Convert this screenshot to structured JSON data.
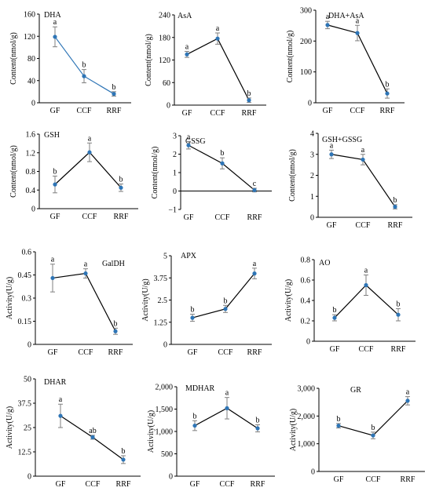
{
  "chart_data": [
    {
      "type": "line",
      "title": "DHA",
      "ylabel": "Content(nmol/g)",
      "categories": [
        "GF",
        "CCF",
        "RRF"
      ],
      "yticks": [
        "0",
        "40",
        "80",
        "120",
        "160"
      ],
      "ylim": [
        0,
        160
      ],
      "values": [
        119,
        48,
        16
      ],
      "errors": [
        18,
        12,
        4
      ],
      "letters": [
        "a",
        "b",
        "b"
      ],
      "line_color": "#2e75b6"
    },
    {
      "type": "line",
      "title": "AsA",
      "ylabel": "Content(nmol/g)",
      "categories": [
        "GF",
        "CCF",
        "RRF"
      ],
      "yticks": [
        "0",
        "60",
        "120",
        "180",
        "240"
      ],
      "ylim": [
        0,
        240
      ],
      "values": [
        135,
        177,
        13
      ],
      "errors": [
        8,
        15,
        6
      ],
      "letters": [
        "a",
        "a",
        "b"
      ],
      "line_color": "#000000"
    },
    {
      "type": "line",
      "title": "DHA+AsA",
      "ylabel": "Content(nmol/g)",
      "categories": [
        "GF",
        "CCF",
        "RRF"
      ],
      "yticks": [
        "0",
        "100",
        "200",
        "300"
      ],
      "ylim": [
        0,
        300
      ],
      "values": [
        252,
        226,
        30
      ],
      "errors": [
        12,
        25,
        15
      ],
      "letters": [
        "a",
        "a",
        "b"
      ],
      "line_color": "#000000"
    },
    {
      "type": "line",
      "title": "GSH",
      "ylabel": "Content(nmol/g)",
      "categories": [
        "GF",
        "CCF",
        "RRF"
      ],
      "yticks": [
        "0",
        "0.4",
        "0.8",
        "1.2",
        "1.6"
      ],
      "ylim": [
        0,
        1.6
      ],
      "values": [
        0.52,
        1.21,
        0.45
      ],
      "errors": [
        0.18,
        0.2,
        0.08
      ],
      "letters": [
        "b",
        "a",
        "b"
      ],
      "line_color": "#000000"
    },
    {
      "type": "line",
      "title": "GSSG",
      "ylabel": "Content(nmol/g)",
      "categories": [
        "GF",
        "CCF",
        "RRF"
      ],
      "yticks": [
        "−1",
        "0",
        "1",
        "2",
        "3"
      ],
      "ylim": [
        -1,
        3
      ],
      "values": [
        2.48,
        1.5,
        0.05
      ],
      "errors": [
        0.2,
        0.3,
        0.1
      ],
      "letters": [
        "a",
        "b",
        "c"
      ],
      "line_color": "#000000"
    },
    {
      "type": "line",
      "title": "GSH+GSSG",
      "ylabel": "Content(nmol/g)",
      "categories": [
        "GF",
        "CCF",
        "RRF"
      ],
      "yticks": [
        "0",
        "1",
        "2",
        "3",
        "4"
      ],
      "ylim": [
        0,
        4
      ],
      "values": [
        3.0,
        2.75,
        0.5
      ],
      "errors": [
        0.2,
        0.25,
        0.1
      ],
      "letters": [
        "a",
        "a",
        "b"
      ],
      "line_color": "#000000"
    },
    {
      "type": "line",
      "title": "GalDH",
      "ylabel": "Activity(U/g)",
      "categories": [
        "GF",
        "CCF",
        "RRF"
      ],
      "yticks": [
        "0",
        "0.15",
        "0.3",
        "0.45",
        "0.6"
      ],
      "ylim": [
        0,
        0.6
      ],
      "values": [
        0.43,
        0.46,
        0.085
      ],
      "errors": [
        0.09,
        0.03,
        0.02
      ],
      "letters": [
        "a",
        "a",
        "b"
      ],
      "line_color": "#000000"
    },
    {
      "type": "line",
      "title": "APX",
      "ylabel": "Activity(U/g)",
      "categories": [
        "GF",
        "CCF",
        "RRF"
      ],
      "yticks": [
        "0",
        "1.25",
        "2.5",
        "3.75",
        "5"
      ],
      "ylim": [
        0,
        5
      ],
      "values": [
        1.5,
        2.0,
        4.0
      ],
      "errors": [
        0.2,
        0.2,
        0.3
      ],
      "letters": [
        "b",
        "b",
        "a"
      ],
      "line_color": "#000000"
    },
    {
      "type": "line",
      "title": "AO",
      "ylabel": "Activity(U/g)",
      "categories": [
        "GF",
        "CCF",
        "RRF"
      ],
      "yticks": [
        "0",
        "0.2",
        "0.4",
        "0.6",
        "0.8"
      ],
      "ylim": [
        0,
        0.8
      ],
      "values": [
        0.23,
        0.55,
        0.26
      ],
      "errors": [
        0.03,
        0.1,
        0.06
      ],
      "letters": [
        "b",
        "a",
        "b"
      ],
      "line_color": "#000000"
    },
    {
      "type": "line",
      "title": "DHAR",
      "ylabel": "Activity(U/g)",
      "categories": [
        "GF",
        "CCF",
        "RRF"
      ],
      "yticks": [
        "0",
        "12.5",
        "25",
        "37.5",
        "50"
      ],
      "ylim": [
        0,
        50
      ],
      "values": [
        31,
        20,
        8.5
      ],
      "errors": [
        6,
        1,
        2
      ],
      "letters": [
        "a",
        "ab",
        "b"
      ],
      "line_color": "#000000"
    },
    {
      "type": "line",
      "title": "MDHAR",
      "ylabel": "Activity(U/g)",
      "categories": [
        "GF",
        "CCF",
        "RRF"
      ],
      "yticks": [
        "0",
        "500",
        "1,000",
        "1,500",
        "2,000"
      ],
      "ylim": [
        0,
        2000
      ],
      "values": [
        1130,
        1520,
        1070
      ],
      "errors": [
        110,
        240,
        80
      ],
      "letters": [
        "b",
        "a",
        "b"
      ],
      "line_color": "#000000"
    },
    {
      "type": "line",
      "title": "GR",
      "ylabel": "Activity(U/g)",
      "categories": [
        "GF",
        "CCF",
        "RRF"
      ],
      "yticks": [
        "0",
        "1,000",
        "2,000",
        "3,000"
      ],
      "ylim": [
        0,
        3000
      ],
      "values": [
        1650,
        1300,
        2550
      ],
      "errors": [
        80,
        120,
        150
      ],
      "letters": [
        "b",
        "b",
        "a"
      ],
      "line_color": "#000000"
    }
  ],
  "styles": {
    "marker_color": "#2e75b6",
    "error_color": "#7f7f7f"
  }
}
